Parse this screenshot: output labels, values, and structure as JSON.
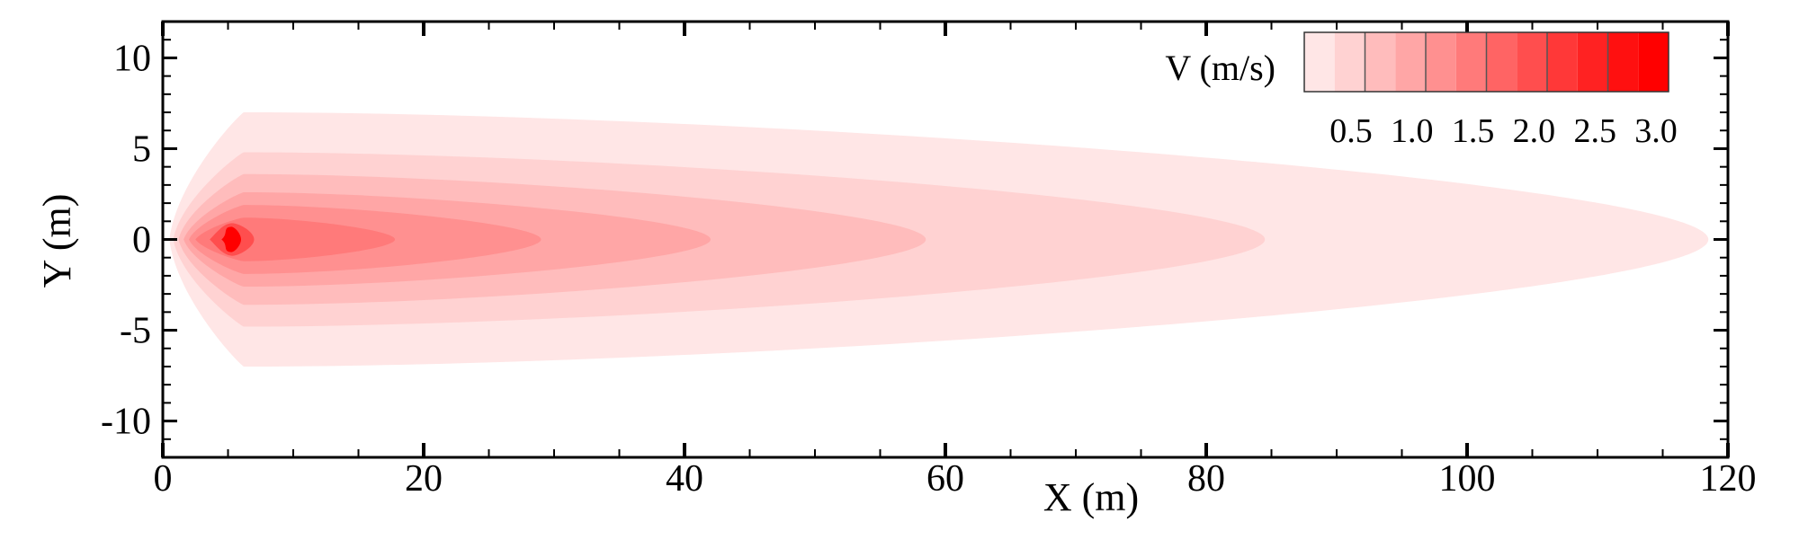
{
  "chart_data": {
    "type": "heatmap",
    "title": "",
    "xlabel": "X (m)",
    "ylabel": "Y (m)",
    "xlim": [
      0,
      120
    ],
    "ylim": [
      -12,
      12
    ],
    "x_ticks": [
      0,
      20,
      40,
      60,
      80,
      100,
      120
    ],
    "x_tick_labels": [
      "0",
      "20",
      "40",
      "60",
      "80",
      "100",
      "120"
    ],
    "y_ticks": [
      10,
      5,
      0,
      -5,
      -10
    ],
    "y_tick_labels": [
      "10",
      "5",
      "0",
      "-5",
      "-10"
    ],
    "grid": false,
    "legend": {
      "title": "V (m/s)",
      "placement": "top-right",
      "levels": [
        0.25,
        0.5,
        0.75,
        1.0,
        1.25,
        1.5,
        1.75,
        2.0,
        2.25,
        2.5,
        2.75,
        3.0
      ],
      "tick_labels": [
        "0.5",
        "1.0",
        "1.5",
        "2.0",
        "2.5",
        "3.0"
      ],
      "colors": [
        "#ffe6e6",
        "#ffd2d2",
        "#ffbcbc",
        "#ffa6a6",
        "#ff9090",
        "#ff7a7a",
        "#ff6464",
        "#ff4e4e",
        "#ff3838",
        "#ff2222",
        "#ff1010",
        "#ff0000"
      ]
    },
    "contours": [
      {
        "level": 0.25,
        "x_start": 0.5,
        "x_end": 118.5,
        "half_width": 7.0
      },
      {
        "level": 0.5,
        "x_start": 0.8,
        "x_end": 84.5,
        "half_width": 4.8
      },
      {
        "level": 0.75,
        "x_start": 1.2,
        "x_end": 58.5,
        "half_width": 3.6
      },
      {
        "level": 1.0,
        "x_start": 1.6,
        "x_end": 42.0,
        "half_width": 2.6
      },
      {
        "level": 1.25,
        "x_start": 2.0,
        "x_end": 29.0,
        "half_width": 1.9
      },
      {
        "level": 1.5,
        "x_start": 2.5,
        "x_end": 17.8,
        "half_width": 1.2
      },
      {
        "level": 2.0,
        "x_start": 3.6,
        "x_end": 7.0,
        "half_width": 0.9
      },
      {
        "level": 3.0,
        "x_start": 4.5,
        "x_end": 6.0,
        "half_width": 0.7
      }
    ]
  }
}
